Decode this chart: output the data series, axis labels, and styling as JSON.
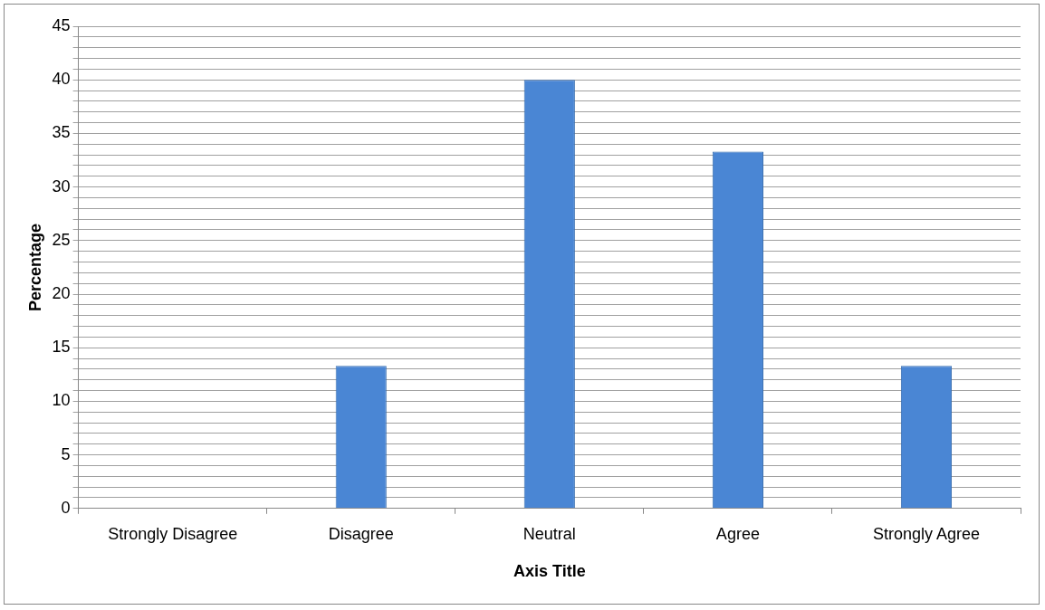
{
  "chart_data": {
    "type": "bar",
    "xlabel": "Axis Title",
    "ylabel": "Percentage",
    "categories": [
      "Strongly Disagree",
      "Disagree",
      "Neutral",
      "Agree",
      "Strongly Agree"
    ],
    "values": [
      0,
      13.3,
      40,
      33.3,
      13.3
    ],
    "color": "#4a86d4",
    "ylim": [
      0,
      45
    ],
    "yticks": [
      0,
      {
        "value": 1,
        "label": null
      },
      {
        "value": 2,
        "label": null
      },
      {
        "value": 3,
        "label": null
      },
      {
        "value": 4,
        "label": null
      },
      5,
      {
        "value": 6,
        "label": null
      },
      {
        "value": 7,
        "label": null
      },
      {
        "value": 8,
        "label": null
      },
      {
        "value": 9,
        "label": null
      },
      10,
      {
        "value": 11,
        "label": null
      },
      {
        "value": 12,
        "label": null
      },
      {
        "value": 13,
        "label": null
      },
      {
        "value": 14,
        "label": null
      },
      15,
      {
        "value": 16,
        "label": null
      },
      {
        "value": 17,
        "label": null
      },
      {
        "value": 18,
        "label": null
      },
      {
        "value": 19,
        "label": null
      },
      20,
      {
        "value": 21,
        "label": null
      },
      {
        "value": 22,
        "label": null
      },
      {
        "value": 23,
        "label": null
      },
      {
        "value": 24,
        "label": null
      },
      25,
      {
        "value": 26,
        "label": null
      },
      {
        "value": 27,
        "label": null
      },
      {
        "value": 28,
        "label": null
      },
      {
        "value": 29,
        "label": null
      },
      30,
      {
        "value": 31,
        "label": null
      },
      {
        "value": 32,
        "label": null
      },
      {
        "value": 33,
        "label": null
      },
      {
        "value": 34,
        "label": null
      },
      35,
      {
        "value": 36,
        "label": null
      },
      {
        "value": 37,
        "label": null
      },
      {
        "value": 38,
        "label": null
      },
      {
        "value": 39,
        "label": null
      },
      40,
      {
        "value": 41,
        "label": null
      },
      {
        "value": 42,
        "label": null
      },
      {
        "value": 43,
        "label": null
      },
      {
        "value": 44,
        "label": null
      },
      45
    ],
    "grid": true
  }
}
